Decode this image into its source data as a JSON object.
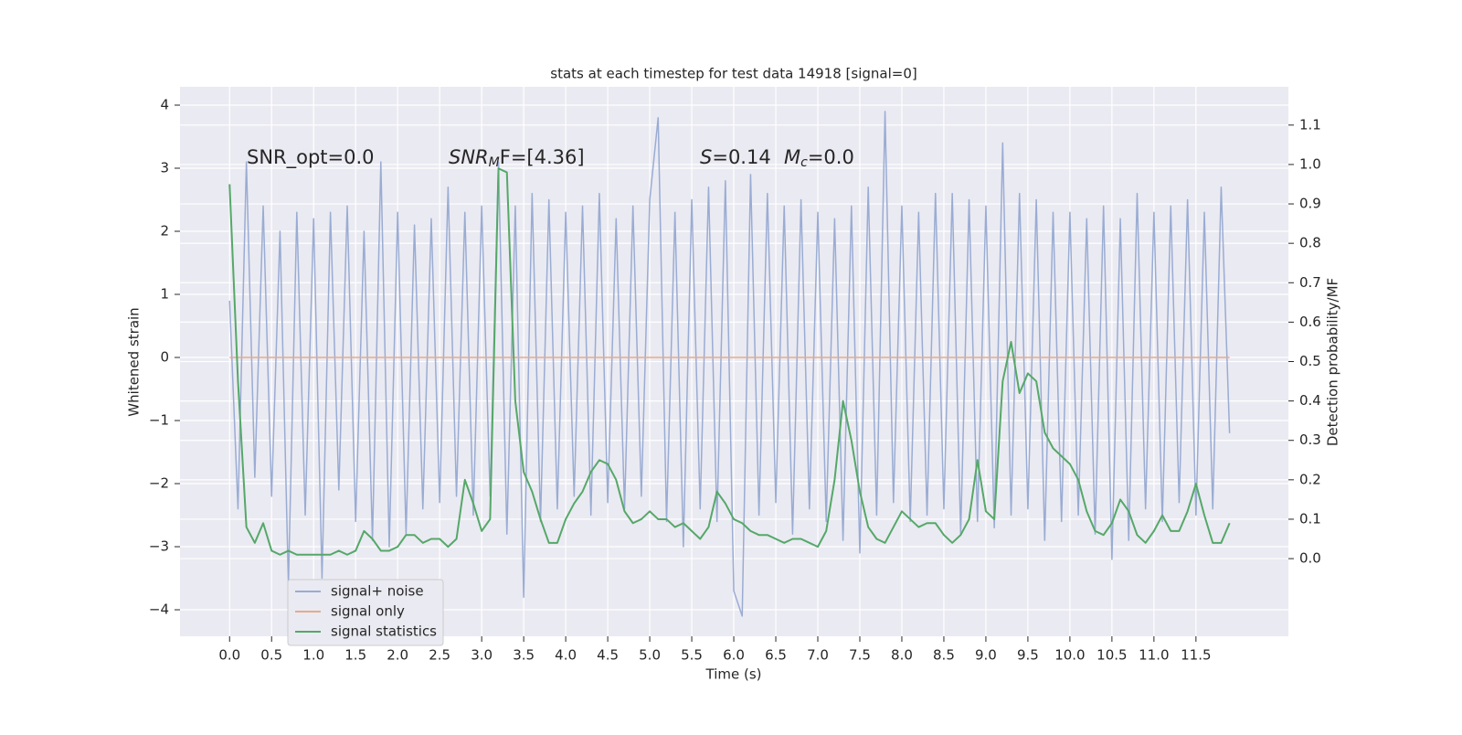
{
  "chart_data": {
    "type": "line",
    "title": "stats at each timestep for test data 14918 [signal=0]",
    "x_label": "Time (s)",
    "y_label": "Whitened strain",
    "y2_label": "Detection probability/MF",
    "annotations": {
      "snr_opt": "SNR_opt=0.0",
      "snr_mf": [
        "SNR",
        "M",
        "F=[4.36]"
      ],
      "stats": [
        "S",
        "=0.14",
        "M",
        "c",
        "=0.0"
      ]
    },
    "grid": true,
    "legend": "lower left",
    "x": [
      0,
      0.1,
      0.2,
      0.3,
      0.4,
      0.5,
      0.6,
      0.7,
      0.8,
      0.9,
      1,
      1.1,
      1.2,
      1.3,
      1.4,
      1.5,
      1.6,
      1.7,
      1.8,
      1.9,
      2,
      2.1,
      2.2,
      2.3,
      2.4,
      2.5,
      2.6,
      2.7,
      2.8,
      2.9,
      3,
      3.1,
      3.2,
      3.3,
      3.4,
      3.5,
      3.6,
      3.7,
      3.8,
      3.9,
      4,
      4.1,
      4.2,
      4.3,
      4.4,
      4.5,
      4.6,
      4.7,
      4.8,
      4.9,
      5,
      5.1,
      5.2,
      5.3,
      5.4,
      5.5,
      5.6,
      5.7,
      5.8,
      5.9,
      6,
      6.1,
      6.2,
      6.3,
      6.4,
      6.5,
      6.6,
      6.7,
      6.8,
      6.9,
      7,
      7.1,
      7.2,
      7.3,
      7.4,
      7.5,
      7.6,
      7.7,
      7.8,
      7.9,
      8,
      8.1,
      8.2,
      8.3,
      8.4,
      8.5,
      8.6,
      8.7,
      8.8,
      8.9,
      9,
      9.1,
      9.2,
      9.3,
      9.4,
      9.5,
      9.6,
      9.7,
      9.8,
      9.9,
      10,
      10.1,
      10.2,
      10.3,
      10.4,
      10.5,
      10.6,
      10.7,
      10.8,
      10.9,
      11,
      11.1,
      11.2,
      11.3,
      11.4,
      11.5,
      11.6,
      11.7,
      11.8,
      11.9
    ],
    "series": [
      {
        "name": "signal+ noise",
        "color": "#9aacd3",
        "axis": "y",
        "values": [
          0.9,
          -2.4,
          3.1,
          -1.9,
          2.4,
          -2.2,
          2.0,
          -3.6,
          2.3,
          -2.5,
          2.2,
          -3.5,
          2.3,
          -2.1,
          2.4,
          -2.6,
          2.0,
          -2.9,
          3.1,
          -3.0,
          2.3,
          -2.8,
          2.1,
          -2.4,
          2.2,
          -2.3,
          2.7,
          -2.2,
          2.3,
          -2.5,
          2.4,
          -2.2,
          3.1,
          -2.8,
          2.4,
          -3.8,
          2.6,
          -2.6,
          2.5,
          -2.4,
          2.3,
          -2.2,
          2.4,
          -2.5,
          2.6,
          -2.3,
          2.2,
          -2.4,
          2.4,
          -2.2,
          2.5,
          3.8,
          -2.6,
          2.3,
          -3.0,
          2.5,
          -2.4,
          2.7,
          -2.6,
          2.8,
          -3.7,
          -4.1,
          2.9,
          -2.5,
          2.6,
          -2.3,
          2.4,
          -2.8,
          2.5,
          -2.4,
          2.3,
          -2.6,
          2.2,
          -2.9,
          2.4,
          -3.1,
          2.7,
          -2.5,
          3.9,
          -2.3,
          2.4,
          -2.6,
          2.3,
          -2.5,
          2.6,
          -2.4,
          2.6,
          -2.8,
          2.5,
          -2.6,
          2.4,
          -2.7,
          3.4,
          -2.5,
          2.6,
          -2.4,
          2.5,
          -2.9,
          2.3,
          -2.6,
          2.3,
          -2.5,
          2.2,
          -2.8,
          2.4,
          -3.2,
          2.2,
          -2.9,
          2.6,
          -2.4,
          2.3,
          -2.6,
          2.4,
          -2.3,
          2.5,
          -2.5,
          2.3,
          -2.4,
          2.7,
          -1.2
        ]
      },
      {
        "name": "signal only",
        "color": "#e8a98a",
        "axis": "y",
        "x": [
          0,
          11.9
        ],
        "values": [
          0,
          0
        ]
      },
      {
        "name": "signal statistics",
        "color": "#55a868",
        "axis": "y2",
        "values": [
          0.95,
          0.45,
          0.08,
          0.04,
          0.09,
          0.02,
          0.01,
          0.02,
          0.01,
          0.01,
          0.01,
          0.01,
          0.01,
          0.02,
          0.01,
          0.02,
          0.07,
          0.05,
          0.02,
          0.02,
          0.03,
          0.06,
          0.06,
          0.04,
          0.05,
          0.05,
          0.03,
          0.05,
          0.2,
          0.14,
          0.07,
          0.1,
          0.99,
          0.98,
          0.4,
          0.22,
          0.17,
          0.1,
          0.04,
          0.04,
          0.1,
          0.14,
          0.17,
          0.22,
          0.25,
          0.24,
          0.2,
          0.12,
          0.09,
          0.1,
          0.12,
          0.1,
          0.1,
          0.08,
          0.09,
          0.07,
          0.05,
          0.08,
          0.17,
          0.14,
          0.1,
          0.09,
          0.07,
          0.06,
          0.06,
          0.05,
          0.04,
          0.05,
          0.05,
          0.04,
          0.03,
          0.07,
          0.2,
          0.4,
          0.3,
          0.17,
          0.08,
          0.05,
          0.04,
          0.08,
          0.12,
          0.1,
          0.08,
          0.09,
          0.09,
          0.06,
          0.04,
          0.06,
          0.1,
          0.25,
          0.12,
          0.1,
          0.45,
          0.55,
          0.42,
          0.47,
          0.45,
          0.32,
          0.28,
          0.26,
          0.24,
          0.2,
          0.12,
          0.07,
          0.06,
          0.09,
          0.15,
          0.12,
          0.06,
          0.04,
          0.07,
          0.11,
          0.07,
          0.07,
          0.12,
          0.19,
          0.11,
          0.04,
          0.04,
          0.09
        ]
      }
    ],
    "xlim": [
      -0.59,
      12.6
    ],
    "ylim": [
      -4.42,
      4.29
    ],
    "y2lim": [
      -0.197,
      1.197
    ],
    "xticks": [
      {
        "value": 0,
        "label": "0.0"
      },
      0.5,
      {
        "value": 1,
        "label": "1.0"
      },
      1.5,
      {
        "value": 2,
        "label": "2.0"
      },
      2.5,
      {
        "value": 3,
        "label": "3.0"
      },
      3.5,
      {
        "value": 4,
        "label": "4.0"
      },
      4.5,
      {
        "value": 5,
        "label": "5.0"
      },
      5.5,
      {
        "value": 6,
        "label": "6.0"
      },
      6.5,
      {
        "value": 7,
        "label": "7.0"
      },
      7.5,
      {
        "value": 8,
        "label": "8.0"
      },
      8.5,
      {
        "value": 9,
        "label": "9.0"
      },
      9.5,
      {
        "value": 10,
        "label": "10.0"
      },
      10.5,
      {
        "value": 11,
        "label": "11.0"
      },
      11.5
    ],
    "yticks": [
      {
        "value": -4,
        "label": "−4"
      },
      {
        "value": -3,
        "label": "−3"
      },
      {
        "value": -2,
        "label": "−2"
      },
      {
        "value": -1,
        "label": "−1"
      },
      0,
      1,
      2,
      3,
      4
    ],
    "y2ticks": [
      {
        "value": 0,
        "label": "0.0"
      },
      0.1,
      0.2,
      0.3,
      0.4,
      0.5,
      0.6,
      0.7,
      0.8,
      0.9,
      {
        "value": 1,
        "label": "1.0"
      },
      1.1
    ]
  }
}
